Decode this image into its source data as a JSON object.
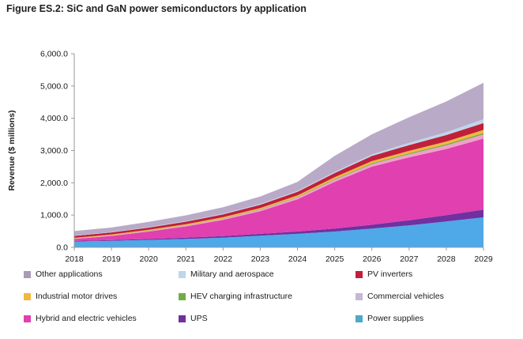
{
  "figure_title": "Figure ES.2: SiC and GaN power semiconductors by application",
  "chart_data": {
    "type": "area",
    "stacked": true,
    "title": "Figure ES.2: SiC and GaN power semiconductors by application",
    "xlabel": "",
    "ylabel": "Revenue ($ millions)",
    "ylim": [
      0,
      6000
    ],
    "y_ticks": [
      0,
      1000,
      2000,
      3000,
      4000,
      5000,
      6000
    ],
    "y_tick_labels": [
      "0.0",
      "1,000.0",
      "2,000.0",
      "3,000.0",
      "4,000.0",
      "5,000.0",
      "6,000.0"
    ],
    "x": [
      "2018",
      "2019",
      "2020",
      "2021",
      "2022",
      "2023",
      "2024",
      "2025",
      "2026",
      "2027",
      "2028",
      "2029"
    ],
    "grid": false,
    "legend_position": "bottom",
    "series": [
      {
        "name": "Power supplies",
        "color": "#4fa8e8",
        "values": [
          180,
          200,
          230,
          260,
          300,
          360,
          420,
          490,
          580,
          680,
          800,
          930
        ]
      },
      {
        "name": "UPS",
        "color": "#7030a0",
        "values": [
          20,
          25,
          30,
          40,
          50,
          60,
          70,
          90,
          120,
          160,
          200,
          240
        ]
      },
      {
        "name": "Hybrid and electric vehicles",
        "color": "#e040b0",
        "values": [
          60,
          130,
          230,
          350,
          500,
          700,
          1000,
          1450,
          1800,
          1950,
          2050,
          2200
        ]
      },
      {
        "name": "Commercial vehicles",
        "color": "#f0a0c8",
        "values": [
          10,
          15,
          20,
          25,
          35,
          45,
          55,
          65,
          80,
          95,
          110,
          130
        ]
      },
      {
        "name": "HEV charging infrastructure",
        "color": "#70ad47",
        "values": [
          5,
          5,
          8,
          10,
          12,
          15,
          18,
          22,
          26,
          30,
          35,
          40
        ]
      },
      {
        "name": "Industrial motor drives",
        "color": "#f0b840",
        "values": [
          20,
          22,
          25,
          30,
          35,
          40,
          45,
          55,
          65,
          75,
          85,
          100
        ]
      },
      {
        "name": "PV inverters",
        "color": "#c0203a",
        "values": [
          60,
          65,
          70,
          80,
          90,
          100,
          110,
          130,
          160,
          180,
          200,
          210
        ]
      },
      {
        "name": "Military and aerospace",
        "color": "#bcd6ec",
        "values": [
          10,
          12,
          15,
          18,
          22,
          26,
          30,
          35,
          50,
          70,
          90,
          120
        ]
      },
      {
        "name": "Other applications",
        "color": "#b9aac8",
        "values": [
          140,
          140,
          160,
          180,
          200,
          230,
          280,
          500,
          620,
          790,
          950,
          1130
        ]
      }
    ],
    "legend": [
      {
        "name": "Other applications",
        "color": "#a89cb5"
      },
      {
        "name": "Military and aerospace",
        "color": "#bcd6ec"
      },
      {
        "name": "PV inverters",
        "color": "#c0203a"
      },
      {
        "name": "Industrial motor drives",
        "color": "#f0b840"
      },
      {
        "name": "HEV charging infrastructure",
        "color": "#70ad47"
      },
      {
        "name": "Commercial vehicles",
        "color": "#c5b8d4"
      },
      {
        "name": "Hybrid and electric vehicles",
        "color": "#e040b0"
      },
      {
        "name": "UPS",
        "color": "#7030a0"
      },
      {
        "name": "Power supplies",
        "color": "#4fa8c8"
      }
    ]
  }
}
